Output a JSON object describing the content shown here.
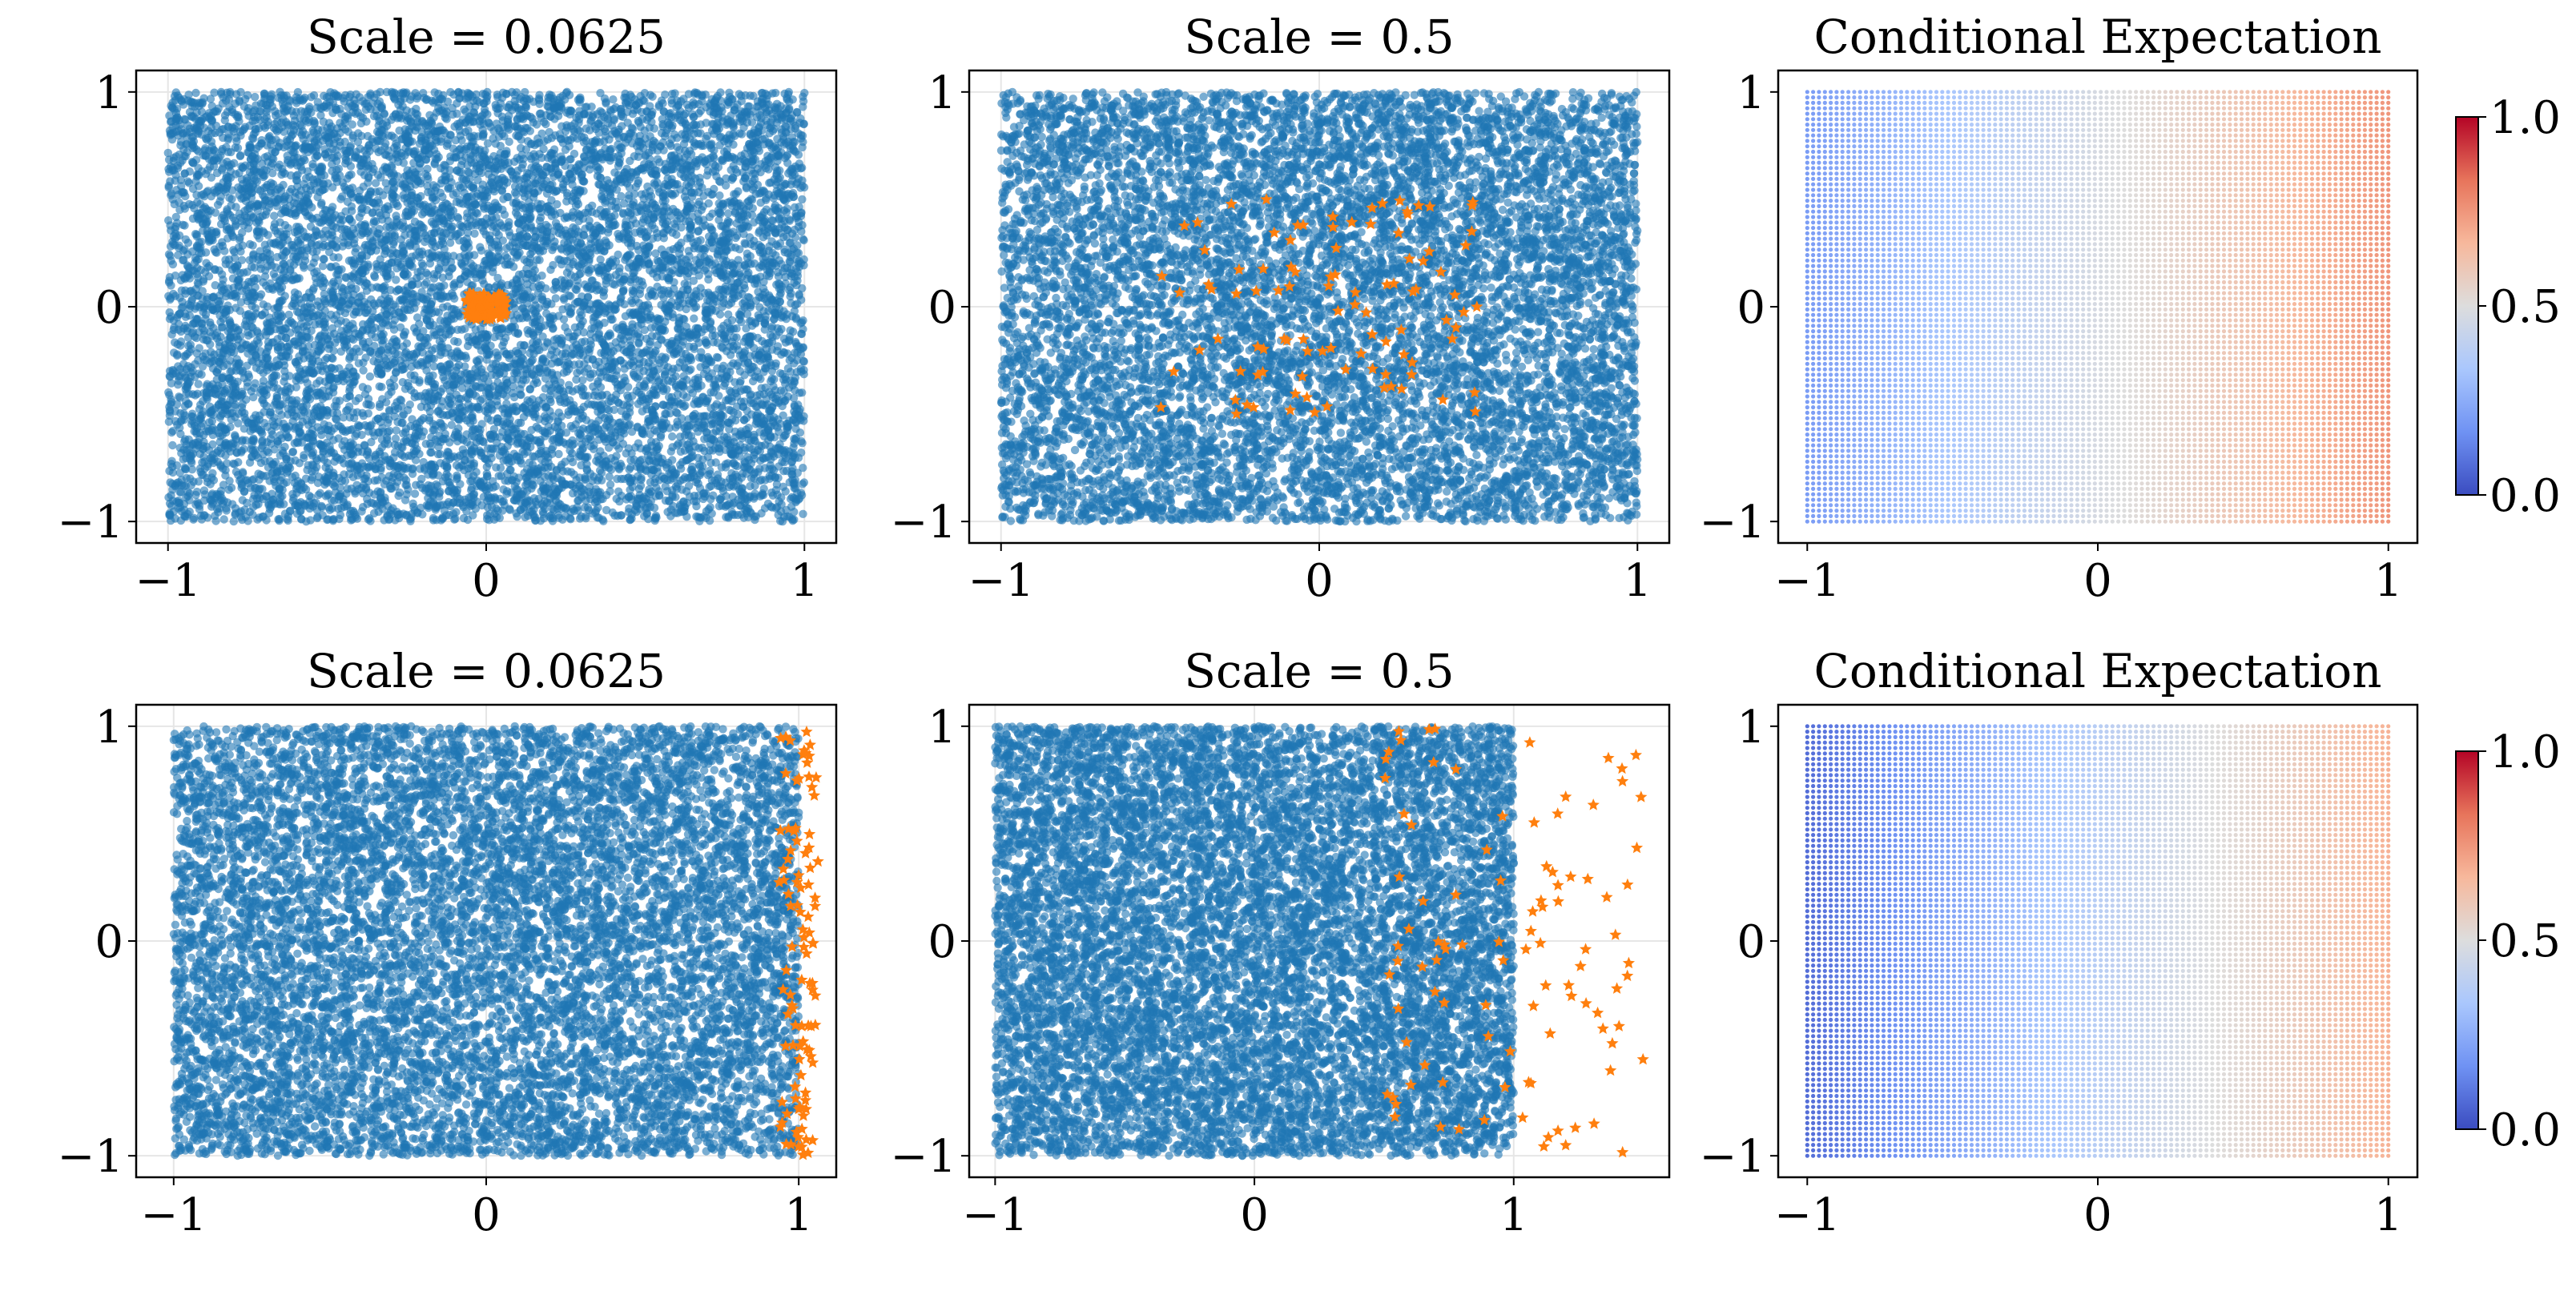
{
  "colors": {
    "blue_points": "#1f77b4",
    "orange_stars": "#ff7f0e",
    "grid": "#e6e6e6",
    "colormap": "coolwarm",
    "colormap_stops": [
      "#3b4cc0",
      "#6f92f3",
      "#aac7fd",
      "#dddddd",
      "#f7b89c",
      "#e7745b",
      "#b40426"
    ]
  },
  "chart_data": [
    {
      "type": "scatter",
      "title": "Scale = 0.0625",
      "xlim": [
        -1.1,
        1.1
      ],
      "ylim": [
        -1.1,
        1.1
      ],
      "xticks": [
        "−1",
        "0",
        "1"
      ],
      "yticks": [
        "−1",
        "0",
        "1"
      ],
      "grid": true,
      "series": [
        {
          "marker": "circle",
          "color": "blue",
          "dist": "uniform_square",
          "range": [
            -1,
            1
          ],
          "count": 10000
        },
        {
          "marker": "star",
          "color": "orange",
          "dist": "uniform_square",
          "range": [
            -0.0625,
            0.0625
          ],
          "count": 100
        }
      ]
    },
    {
      "type": "scatter",
      "title": "Scale = 0.5",
      "xlim": [
        -1.1,
        1.1
      ],
      "ylim": [
        -1.1,
        1.1
      ],
      "xticks": [
        "−1",
        "0",
        "1"
      ],
      "yticks": [
        "−1",
        "0",
        "1"
      ],
      "grid": true,
      "series": [
        {
          "marker": "circle",
          "color": "blue",
          "dist": "uniform_square",
          "range": [
            -1,
            1
          ],
          "count": 10000
        },
        {
          "marker": "star",
          "color": "orange",
          "dist": "uniform_square",
          "range": [
            -0.5,
            0.5
          ],
          "count": 100
        }
      ]
    },
    {
      "type": "heatmap",
      "title": "Conditional Expectation",
      "xlim": [
        -1.1,
        1.1
      ],
      "ylim": [
        -1.1,
        1.1
      ],
      "xticks": [
        "−1",
        "0",
        "1"
      ],
      "yticks": [
        "−1",
        "0",
        "1"
      ],
      "value_along_x": {
        "x": [
          -1,
          1
        ],
        "value": [
          0.2,
          0.75
        ]
      },
      "colorbar": {
        "range": [
          0.0,
          1.0
        ],
        "ticks": [
          "0.0",
          "0.5",
          "1.0"
        ]
      }
    },
    {
      "type": "scatter",
      "title": "Scale = 0.0625",
      "xlim": [
        -1.12,
        1.12
      ],
      "ylim": [
        -1.1,
        1.1
      ],
      "xticks": [
        "−1",
        "0",
        "1"
      ],
      "yticks": [
        "−1",
        "0",
        "1"
      ],
      "grid": true,
      "series": [
        {
          "marker": "circle",
          "color": "blue",
          "dist": "uniform_square",
          "range": [
            -1,
            1
          ],
          "count": 10000
        },
        {
          "marker": "star",
          "color": "orange",
          "dist": "strip",
          "x_range": [
            0.9375,
            1.0625
          ],
          "y_range": [
            -1,
            1
          ],
          "count": 100
        }
      ]
    },
    {
      "type": "scatter",
      "title": "Scale = 0.5",
      "xlim": [
        -1.1,
        1.6
      ],
      "ylim": [
        -1.1,
        1.1
      ],
      "xticks": [
        "−1",
        "0",
        "1"
      ],
      "yticks": [
        "−1",
        "0",
        "1"
      ],
      "grid": true,
      "series": [
        {
          "marker": "circle",
          "color": "blue",
          "dist": "uniform_square",
          "range": [
            -1,
            1
          ],
          "count": 10000
        },
        {
          "marker": "star",
          "color": "orange",
          "dist": "strip",
          "x_range": [
            0.5,
            1.5
          ],
          "y_range": [
            -1,
            1
          ],
          "count": 100
        }
      ]
    },
    {
      "type": "heatmap",
      "title": "Conditional Expectation",
      "xlim": [
        -1.1,
        1.1
      ],
      "ylim": [
        -1.1,
        1.1
      ],
      "xticks": [
        "−1",
        "0",
        "1"
      ],
      "yticks": [
        "−1",
        "0",
        "1"
      ],
      "value_along_x": {
        "x": [
          -1,
          1
        ],
        "value": [
          0.08,
          0.68
        ]
      },
      "colorbar": {
        "range": [
          0.0,
          1.0
        ],
        "ticks": [
          "0.0",
          "0.5",
          "1.0"
        ]
      }
    }
  ]
}
